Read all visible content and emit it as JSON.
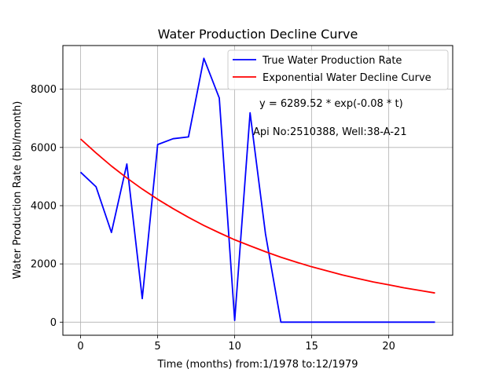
{
  "chart_data": {
    "type": "line",
    "title": "Water Production Decline Curve",
    "xlabel": "Time (months) from:1/1978 to:12/1979",
    "ylabel": "Water Production Rate (bbl/month)",
    "xlim": [
      -1.15,
      24.15
    ],
    "ylim": [
      -450,
      9500
    ],
    "x_ticks": [
      0,
      5,
      10,
      15,
      20
    ],
    "y_ticks": [
      0,
      2000,
      4000,
      6000,
      8000
    ],
    "grid": true,
    "legend_position": "top-right",
    "series": [
      {
        "name": "True Water Production Rate",
        "color": "#0000ff",
        "x": [
          0,
          1,
          2,
          3,
          4,
          5,
          6,
          7,
          8,
          9,
          10,
          11,
          12,
          13,
          14,
          15,
          16,
          17,
          18,
          19,
          20,
          21,
          22,
          23
        ],
        "y": [
          5150,
          4650,
          3080,
          5430,
          810,
          6100,
          6300,
          6360,
          9060,
          7700,
          60,
          7190,
          3030,
          0,
          0,
          0,
          0,
          0,
          0,
          0,
          0,
          0,
          0,
          0
        ]
      },
      {
        "name": "Exponential Water Decline Curve",
        "color": "#ff0000",
        "x": [
          0,
          1,
          2,
          3,
          4,
          5,
          6,
          7,
          8,
          9,
          10,
          11,
          12,
          13,
          14,
          15,
          16,
          17,
          18,
          19,
          20,
          21,
          22,
          23
        ],
        "y": [
          6290,
          5810,
          5360,
          4950,
          4570,
          4220,
          3900,
          3600,
          3320,
          3070,
          2830,
          2620,
          2420,
          2230,
          2060,
          1900,
          1760,
          1620,
          1500,
          1380,
          1280,
          1180,
          1090,
          1000
        ]
      }
    ],
    "annotations": [
      "y = 6289.52 * exp(-0.08 * t)",
      "Api No:2510388, Well:38-A-21"
    ]
  }
}
